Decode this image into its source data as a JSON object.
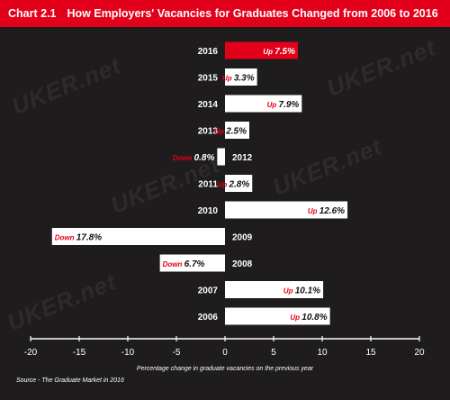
{
  "header": {
    "number": "Chart 2.1",
    "title": "How Employers' Vacancies for Graduates Changed from 2006 to 2016"
  },
  "watermark": "UKER.net",
  "source": "Source - The Graduate Market in 2016",
  "colors": {
    "accent": "#e3001b",
    "background": "#1e1c1c",
    "bar": "#ffffff",
    "highlight_bar": "#e3001b"
  },
  "chart_data": {
    "type": "bar",
    "orientation": "horizontal",
    "title": "How Employers' Vacancies for Graduates Changed from 2006 to 2016",
    "xlabel": "Percentage change in graduate vacancies on the previous year",
    "ylabel": "",
    "xlim": [
      -20,
      20
    ],
    "xticks": [
      "-20",
      "-15",
      "-10",
      "-5",
      "0",
      "5",
      "10",
      "15",
      "20"
    ],
    "categories": [
      "2016",
      "2015",
      "2014",
      "2013",
      "2012",
      "2011",
      "2010",
      "2009",
      "2008",
      "2007",
      "2006"
    ],
    "values": [
      7.5,
      3.3,
      7.9,
      2.5,
      -0.8,
      2.8,
      12.6,
      -17.8,
      -6.7,
      10.1,
      10.8
    ],
    "labels": [
      {
        "dir": "Up",
        "val": "7.5%"
      },
      {
        "dir": "Up",
        "val": "3.3%"
      },
      {
        "dir": "Up",
        "val": "7.9%"
      },
      {
        "dir": "Up",
        "val": "2.5%"
      },
      {
        "dir": "Down",
        "val": "0.8%"
      },
      {
        "dir": "Up",
        "val": "2.8%"
      },
      {
        "dir": "Up",
        "val": "12.6%"
      },
      {
        "dir": "Down",
        "val": "17.8%"
      },
      {
        "dir": "Down",
        "val": "6.7%"
      },
      {
        "dir": "Up",
        "val": "10.1%"
      },
      {
        "dir": "Up",
        "val": "10.8%"
      }
    ],
    "highlight": "2016",
    "grid": false,
    "legend": "none"
  }
}
